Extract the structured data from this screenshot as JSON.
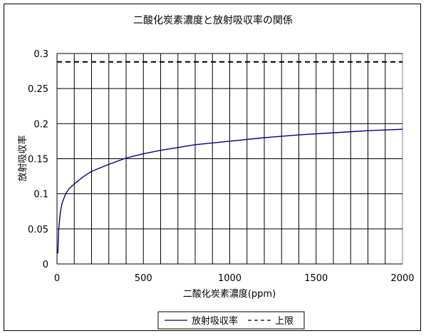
{
  "chart_data": {
    "type": "line",
    "title": "二酸化炭素濃度と放射吸収率の関係",
    "xlabel": "二酸化炭素濃度(ppm)",
    "ylabel": "放射吸収率",
    "xlim": [
      0,
      2000
    ],
    "ylim": [
      0,
      0.3
    ],
    "x_ticks": [
      0,
      500,
      1000,
      1500,
      2000
    ],
    "x_tick_labels": [
      "0",
      "500",
      "1000",
      "1500",
      "2000"
    ],
    "y_ticks": [
      0,
      0.05,
      0.1,
      0.15,
      0.2,
      0.25,
      0.3
    ],
    "y_tick_labels": [
      "0",
      "0.05",
      "0.1",
      "0.15",
      "0.2",
      "0.25",
      "0.3"
    ],
    "grid": {
      "horizontal": true,
      "vertical": true,
      "vertical_step": 100
    },
    "legend_position": "bottom-center",
    "series": [
      {
        "name": "放射吸収率",
        "color": "#000080",
        "style": "solid",
        "x": [
          5,
          10,
          20,
          30,
          50,
          70,
          100,
          150,
          200,
          300,
          400,
          500,
          600,
          700,
          800,
          1000,
          1200,
          1400,
          1600,
          1800,
          2000
        ],
        "y": [
          0.015,
          0.05,
          0.075,
          0.087,
          0.1,
          0.107,
          0.114,
          0.124,
          0.132,
          0.142,
          0.151,
          0.157,
          0.162,
          0.166,
          0.17,
          0.175,
          0.18,
          0.184,
          0.187,
          0.19,
          0.192
        ]
      },
      {
        "name": "上限",
        "color": "#000000",
        "style": "dashed",
        "x": [
          0,
          2000
        ],
        "y": [
          0.288,
          0.288
        ]
      }
    ]
  }
}
